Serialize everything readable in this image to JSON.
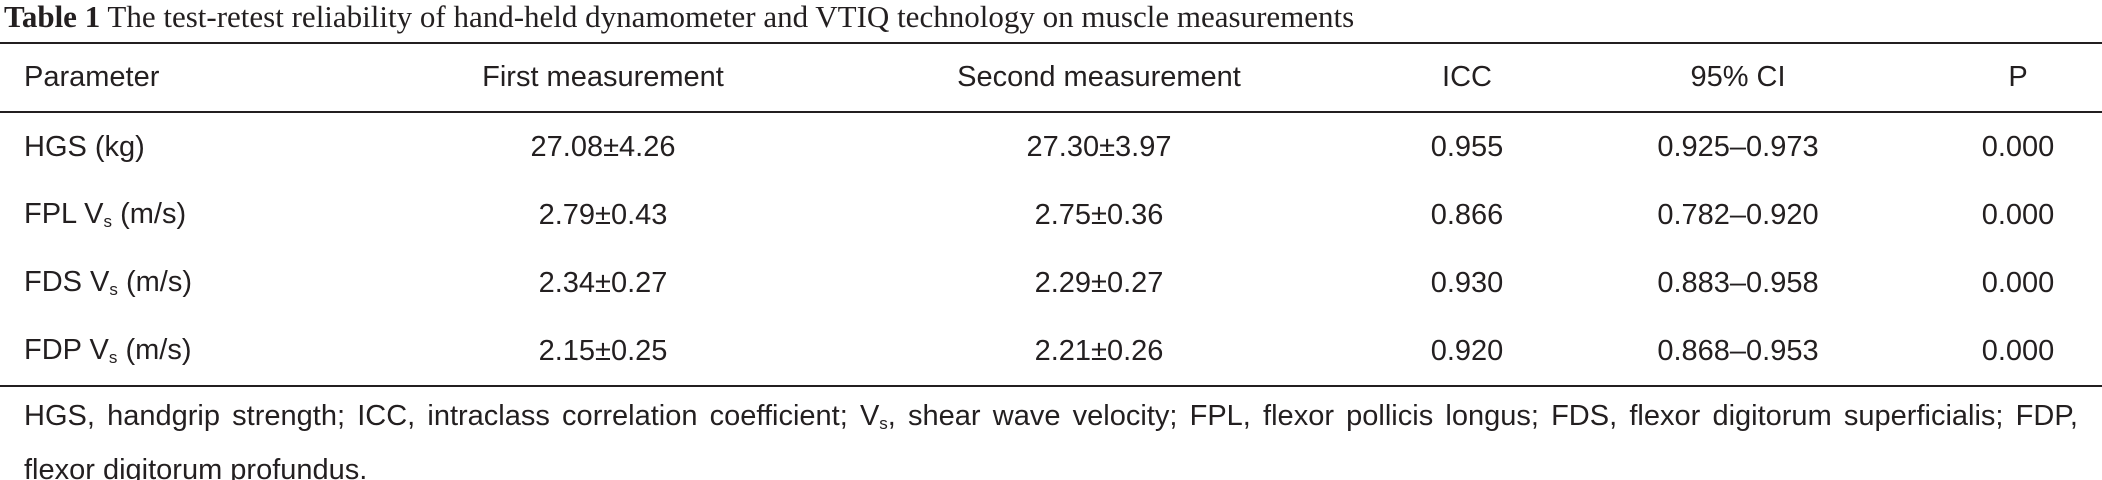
{
  "title": {
    "label": "Table 1",
    "text": "The test-retest reliability of hand-held dynamometer and VTIQ technology on muscle measurements"
  },
  "table": {
    "header": [
      "Parameter",
      "First measurement",
      "Second measurement",
      "ICC",
      "95% CI",
      "P"
    ],
    "rows": [
      [
        [
          "HGS (kg)"
        ],
        "27.08±4.26",
        "27.30±3.97",
        "0.955",
        "0.925–0.973",
        "0.000"
      ],
      [
        [
          "FPL V",
          "s",
          " (m/s)"
        ],
        "2.79±0.43",
        "2.75±0.36",
        "0.866",
        "0.782–0.920",
        "0.000"
      ],
      [
        [
          "FDS V",
          "s",
          " (m/s)"
        ],
        "2.34±0.27",
        "2.29±0.27",
        "0.930",
        "0.883–0.958",
        "0.000"
      ],
      [
        [
          "FDP V",
          "s",
          " (m/s)"
        ],
        "2.15±0.25",
        "2.21±0.26",
        "0.920",
        "0.868–0.953",
        "0.000"
      ]
    ]
  },
  "footnote": [
    "HGS, handgrip strength; ICC, intraclass correlation coefficient; V",
    "s",
    ", shear wave velocity; FPL, flexor pollicis longus; FDS, flexor digitorum superficialis; FDP, flexor digitorum profundus."
  ]
}
